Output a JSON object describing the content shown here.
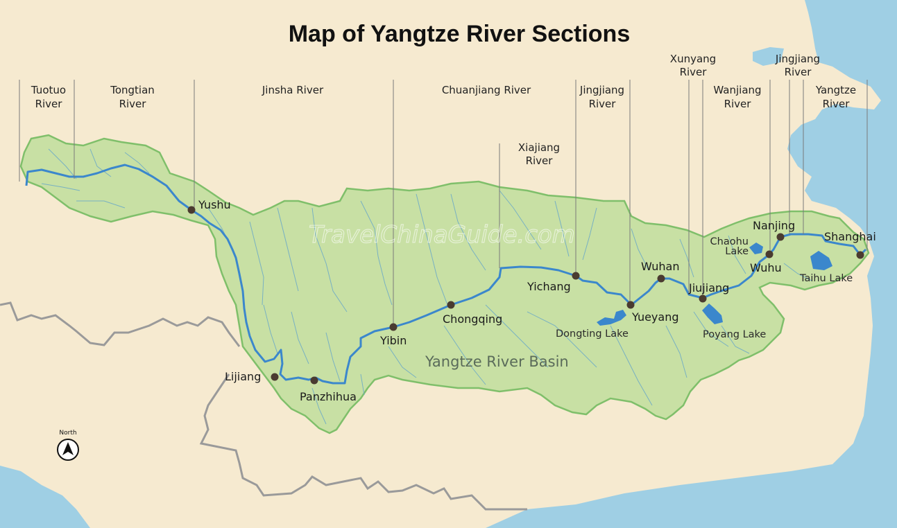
{
  "title": "Map of Yangtze River Sections",
  "basin_label": "Yangtze River Basin",
  "watermark": "TravelChinaGuide.com",
  "north_label": "North",
  "sections": [
    {
      "line1": "Tuotuo",
      "line2": "River"
    },
    {
      "line1": "Tongtian",
      "line2": "River"
    },
    {
      "line1": "Jinsha River",
      "line2": ""
    },
    {
      "line1": "Chuanjiang River",
      "line2": ""
    },
    {
      "line1": "Xiajiang",
      "line2": "River"
    },
    {
      "line1": "Jingjiang",
      "line2": "River"
    },
    {
      "line1": "Xunyang",
      "line2": "River"
    },
    {
      "line1": "Wanjiang",
      "line2": "River"
    },
    {
      "line1": "Jingjiang",
      "line2": "River"
    },
    {
      "line1": "Yangtze",
      "line2": "River"
    }
  ],
  "cities": [
    "Yushu",
    "Lijiang",
    "Panzhihua",
    "Yibin",
    "Chongqing",
    "Yichang",
    "Yueyang",
    "Wuhan",
    "Jiujiang",
    "Wuhu",
    "Nanjing",
    "Shanghai"
  ],
  "lakes": [
    {
      "line1": "Dongting Lake",
      "line2": ""
    },
    {
      "line1": "Poyang Lake",
      "line2": ""
    },
    {
      "line1": "Chaohu",
      "line2": "Lake"
    },
    {
      "line1": "Taihu Lake",
      "line2": ""
    }
  ],
  "colors": {
    "land": "#f6ead0",
    "basin": "#c8e0a4",
    "basin_border": "#7fbf6a",
    "sea": "#9fcfe4",
    "river": "#3b87cc",
    "tributary": "#6aa8c8",
    "border": "#9a9a9a",
    "city_dot": "#4a3b30"
  }
}
